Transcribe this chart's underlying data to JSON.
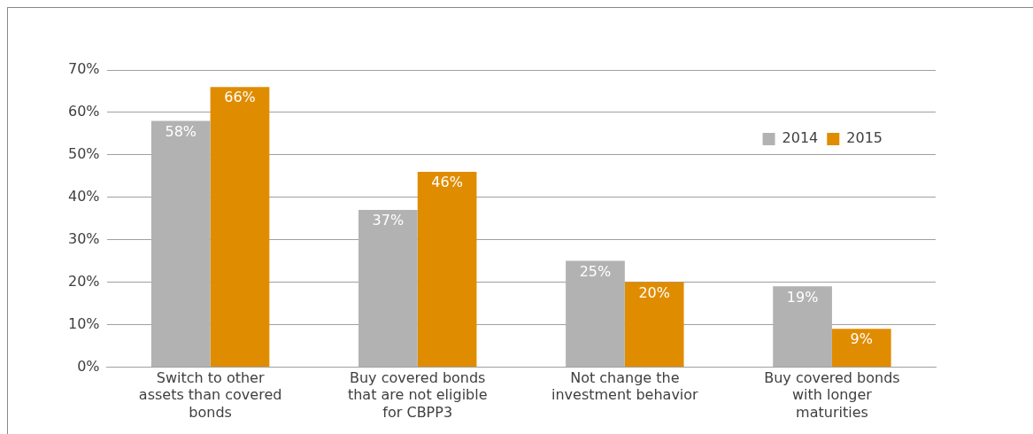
{
  "chart_data": {
    "type": "bar",
    "categories": [
      "Switch to other assets than covered bonds",
      "Buy covered bonds that are not eligible for CBPP3",
      "Not change the investment behavior",
      "Buy covered bonds with longer maturities"
    ],
    "series": [
      {
        "name": "2014",
        "color": "#b2b2b2",
        "values": [
          58,
          37,
          25,
          19
        ],
        "value_labels": [
          "58%",
          "37%",
          "25%",
          "19%"
        ]
      },
      {
        "name": "2015",
        "color": "#e08c00",
        "values": [
          66,
          46,
          20,
          9
        ],
        "value_labels": [
          "66%",
          "46%",
          "20%",
          "9%"
        ]
      }
    ],
    "ylim": [
      0,
      70
    ],
    "yticks": [
      {
        "value": 0,
        "label": "0%"
      },
      {
        "value": 10,
        "label": "10%"
      },
      {
        "value": 20,
        "label": "20%"
      },
      {
        "value": 30,
        "label": "30%"
      },
      {
        "value": 40,
        "label": "40%"
      },
      {
        "value": 50,
        "label": "50%"
      },
      {
        "value": 60,
        "label": "60%"
      },
      {
        "value": 70,
        "label": "70%"
      }
    ],
    "grid": "y",
    "legend": "top right"
  }
}
